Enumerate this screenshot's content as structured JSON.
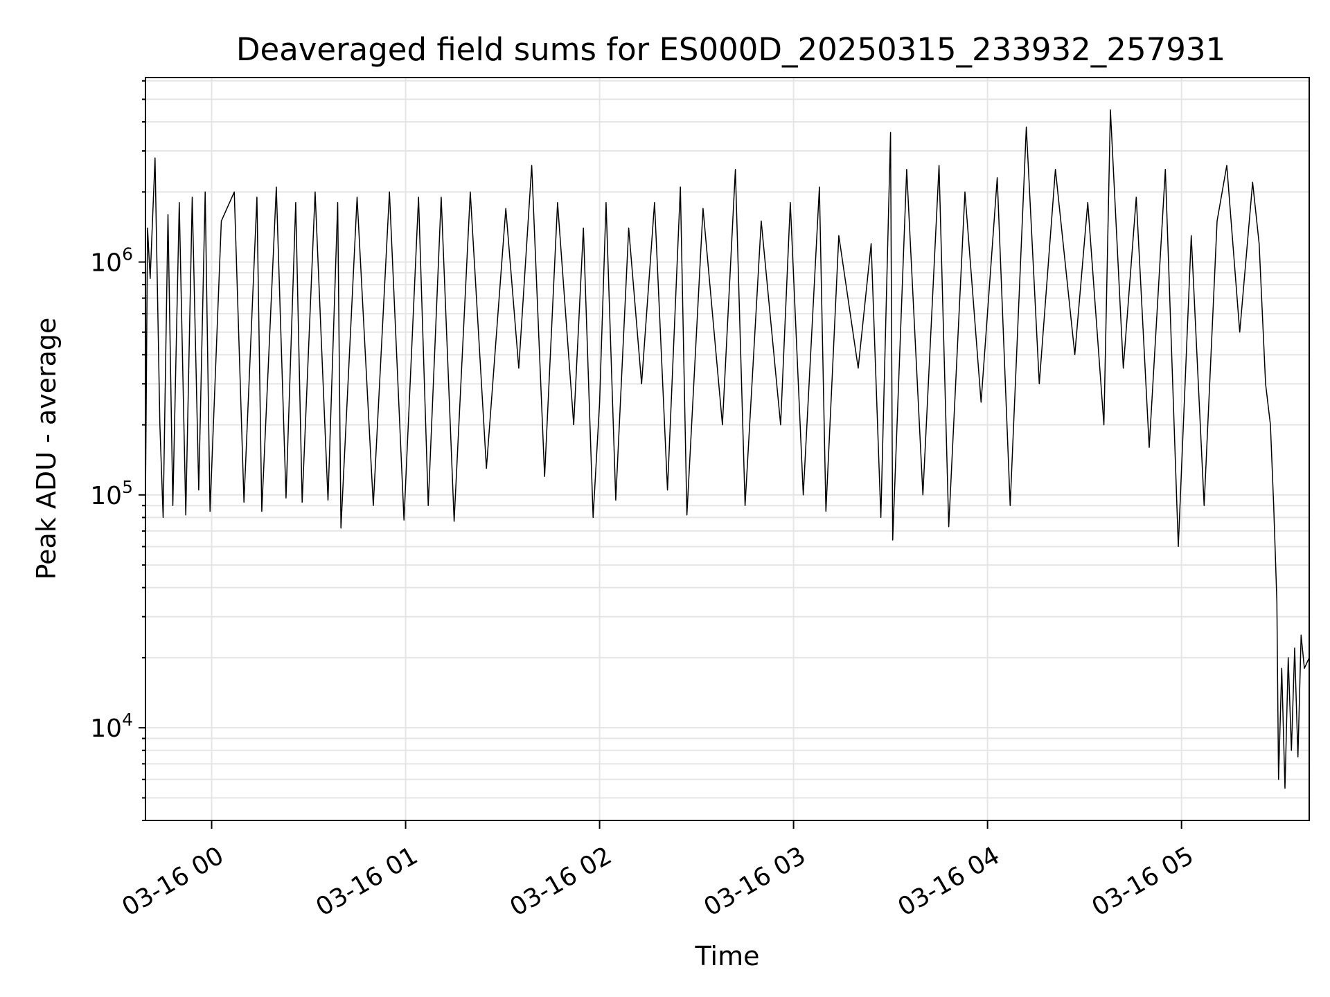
{
  "chart_data": {
    "type": "line",
    "title": "Deaveraged field sums for ES000D_20250315_233932_257931",
    "xlabel": "Time",
    "ylabel": "Peak ADU - average",
    "yscale": "log",
    "grid": true,
    "line_color": "#000000",
    "grid_color": "#e5e5e5",
    "x_range": [
      "2025-03-15 23:39:32",
      "2025-03-16 05:39:30"
    ],
    "ylim": [
      4000,
      6200000
    ],
    "x_ticks": [
      {
        "time": "2025-03-16 00:00",
        "label": "03-16 00"
      },
      {
        "time": "2025-03-16 01:00",
        "label": "03-16 01"
      },
      {
        "time": "2025-03-16 02:00",
        "label": "03-16 02"
      },
      {
        "time": "2025-03-16 03:00",
        "label": "03-16 03"
      },
      {
        "time": "2025-03-16 04:00",
        "label": "03-16 04"
      },
      {
        "time": "2025-03-16 05:00",
        "label": "03-16 05"
      }
    ],
    "y_ticks": [
      {
        "value": 10000,
        "base": "10",
        "exp": "4"
      },
      {
        "value": 100000,
        "base": "10",
        "exp": "5"
      },
      {
        "value": 1000000,
        "base": "10",
        "exp": "6"
      }
    ],
    "series": [
      {
        "points": [
          [
            "2025-03-15 23:39:32",
            95000
          ],
          [
            "2025-03-15 23:40:10",
            1400000
          ],
          [
            "2025-03-15 23:41:00",
            850000
          ],
          [
            "2025-03-15 23:42:30",
            2800000
          ],
          [
            "2025-03-15 23:44:00",
            200000
          ],
          [
            "2025-03-15 23:45:00",
            80000
          ],
          [
            "2025-03-15 23:46:30",
            1600000
          ],
          [
            "2025-03-15 23:48:00",
            90000
          ],
          [
            "2025-03-15 23:50:00",
            1800000
          ],
          [
            "2025-03-15 23:52:00",
            82000
          ],
          [
            "2025-03-15 23:54:00",
            1900000
          ],
          [
            "2025-03-15 23:56:00",
            105000
          ],
          [
            "2025-03-15 23:58:00",
            2000000
          ],
          [
            "2025-03-15 23:59:30",
            85000
          ],
          [
            "2025-03-16 00:03:00",
            1500000
          ],
          [
            "2025-03-16 00:07:00",
            2000000
          ],
          [
            "2025-03-16 00:10:00",
            93000
          ],
          [
            "2025-03-16 00:14:00",
            1900000
          ],
          [
            "2025-03-16 00:15:30",
            85000
          ],
          [
            "2025-03-16 00:20:00",
            2100000
          ],
          [
            "2025-03-16 00:23:00",
            97000
          ],
          [
            "2025-03-16 00:26:00",
            1800000
          ],
          [
            "2025-03-16 00:28:00",
            93000
          ],
          [
            "2025-03-16 00:32:00",
            2000000
          ],
          [
            "2025-03-16 00:36:00",
            95000
          ],
          [
            "2025-03-16 00:39:00",
            1800000
          ],
          [
            "2025-03-16 00:40:00",
            72000
          ],
          [
            "2025-03-16 00:45:00",
            1900000
          ],
          [
            "2025-03-16 00:50:00",
            90000
          ],
          [
            "2025-03-16 00:55:00",
            2000000
          ],
          [
            "2025-03-16 00:59:30",
            78000
          ],
          [
            "2025-03-16 01:04:00",
            1900000
          ],
          [
            "2025-03-16 01:07:00",
            90000
          ],
          [
            "2025-03-16 01:11:00",
            1900000
          ],
          [
            "2025-03-16 01:15:00",
            77000
          ],
          [
            "2025-03-16 01:20:00",
            2000000
          ],
          [
            "2025-03-16 01:25:00",
            130000
          ],
          [
            "2025-03-16 01:31:00",
            1700000
          ],
          [
            "2025-03-16 01:35:00",
            350000
          ],
          [
            "2025-03-16 01:39:00",
            2600000
          ],
          [
            "2025-03-16 01:43:00",
            120000
          ],
          [
            "2025-03-16 01:47:00",
            1800000
          ],
          [
            "2025-03-16 01:52:00",
            200000
          ],
          [
            "2025-03-16 01:55:00",
            1400000
          ],
          [
            "2025-03-16 01:58:00",
            80000
          ],
          [
            "2025-03-16 02:00:00",
            250000
          ],
          [
            "2025-03-16 02:02:00",
            1800000
          ],
          [
            "2025-03-16 02:05:00",
            95000
          ],
          [
            "2025-03-16 02:09:00",
            1400000
          ],
          [
            "2025-03-16 02:13:00",
            300000
          ],
          [
            "2025-03-16 02:17:00",
            1800000
          ],
          [
            "2025-03-16 02:21:00",
            105000
          ],
          [
            "2025-03-16 02:25:00",
            2100000
          ],
          [
            "2025-03-16 02:27:00",
            82000
          ],
          [
            "2025-03-16 02:32:00",
            1700000
          ],
          [
            "2025-03-16 02:38:00",
            200000
          ],
          [
            "2025-03-16 02:42:00",
            2500000
          ],
          [
            "2025-03-16 02:45:00",
            90000
          ],
          [
            "2025-03-16 02:50:00",
            1500000
          ],
          [
            "2025-03-16 02:56:00",
            200000
          ],
          [
            "2025-03-16 02:59:00",
            1800000
          ],
          [
            "2025-03-16 03:03:00",
            100000
          ],
          [
            "2025-03-16 03:08:00",
            2100000
          ],
          [
            "2025-03-16 03:10:00",
            85000
          ],
          [
            "2025-03-16 03:14:00",
            1300000
          ],
          [
            "2025-03-16 03:20:00",
            350000
          ],
          [
            "2025-03-16 03:24:00",
            1200000
          ],
          [
            "2025-03-16 03:27:00",
            80000
          ],
          [
            "2025-03-16 03:30:00",
            3600000
          ],
          [
            "2025-03-16 03:30:40",
            64000
          ],
          [
            "2025-03-16 03:35:00",
            2500000
          ],
          [
            "2025-03-16 03:40:00",
            100000
          ],
          [
            "2025-03-16 03:45:00",
            2600000
          ],
          [
            "2025-03-16 03:48:00",
            73000
          ],
          [
            "2025-03-16 03:53:00",
            2000000
          ],
          [
            "2025-03-16 03:58:00",
            250000
          ],
          [
            "2025-03-16 04:03:00",
            2300000
          ],
          [
            "2025-03-16 04:07:00",
            90000
          ],
          [
            "2025-03-16 04:12:00",
            3800000
          ],
          [
            "2025-03-16 04:16:00",
            300000
          ],
          [
            "2025-03-16 04:21:00",
            2500000
          ],
          [
            "2025-03-16 04:27:00",
            400000
          ],
          [
            "2025-03-16 04:31:00",
            1800000
          ],
          [
            "2025-03-16 04:36:00",
            200000
          ],
          [
            "2025-03-16 04:38:00",
            4500000
          ],
          [
            "2025-03-16 04:42:00",
            350000
          ],
          [
            "2025-03-16 04:46:00",
            1900000
          ],
          [
            "2025-03-16 04:50:00",
            160000
          ],
          [
            "2025-03-16 04:55:00",
            2500000
          ],
          [
            "2025-03-16 04:59:00",
            60000
          ],
          [
            "2025-03-16 05:03:00",
            1300000
          ],
          [
            "2025-03-16 05:07:00",
            90000
          ],
          [
            "2025-03-16 05:11:00",
            1500000
          ],
          [
            "2025-03-16 05:14:00",
            2600000
          ],
          [
            "2025-03-16 05:18:00",
            500000
          ],
          [
            "2025-03-16 05:22:00",
            2200000
          ],
          [
            "2025-03-16 05:24:00",
            1200000
          ],
          [
            "2025-03-16 05:26:00",
            300000
          ],
          [
            "2025-03-16 05:27:30",
            200000
          ],
          [
            "2025-03-16 05:28:30",
            90000
          ],
          [
            "2025-03-16 05:29:30",
            35000
          ],
          [
            "2025-03-16 05:30:00",
            6000
          ],
          [
            "2025-03-16 05:31:00",
            18000
          ],
          [
            "2025-03-16 05:32:00",
            5500
          ],
          [
            "2025-03-16 05:33:00",
            20000
          ],
          [
            "2025-03-16 05:34:00",
            8000
          ],
          [
            "2025-03-16 05:35:00",
            22000
          ],
          [
            "2025-03-16 05:36:00",
            7500
          ],
          [
            "2025-03-16 05:37:00",
            25000
          ],
          [
            "2025-03-16 05:38:00",
            18000
          ],
          [
            "2025-03-16 05:39:30",
            20000
          ]
        ]
      }
    ]
  }
}
